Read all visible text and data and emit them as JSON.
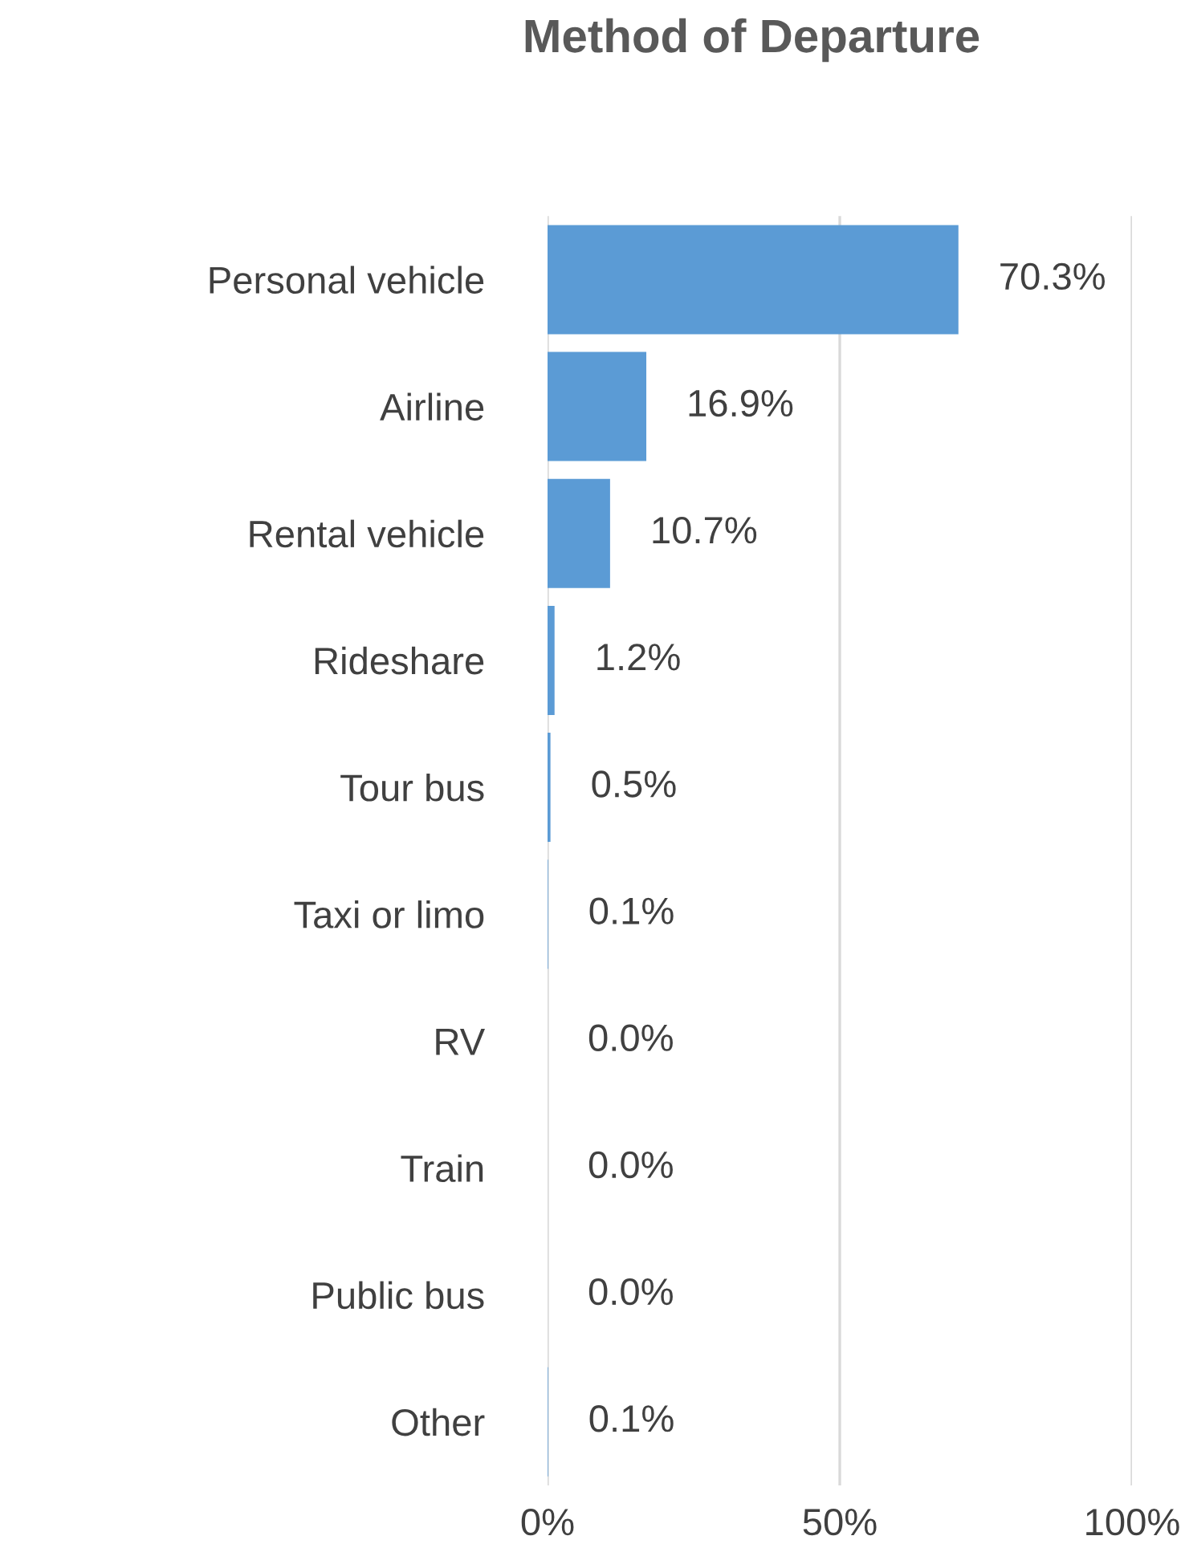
{
  "chart_data": {
    "type": "bar",
    "orientation": "horizontal",
    "title": "Method of Departure",
    "categories": [
      "Personal vehicle",
      "Airline",
      "Rental vehicle",
      "Rideshare",
      "Tour bus",
      "Taxi or limo",
      "RV",
      "Train",
      "Public bus",
      "Other"
    ],
    "values": [
      70.3,
      16.9,
      10.7,
      1.2,
      0.5,
      0.1,
      0.0,
      0.0,
      0.0,
      0.1
    ],
    "value_labels": [
      "70.3%",
      "16.9%",
      "10.7%",
      "1.2%",
      "0.5%",
      "0.1%",
      "0.0%",
      "0.0%",
      "0.0%",
      "0.1%"
    ],
    "color": "#5b9bd5",
    "xlim": [
      0,
      100
    ],
    "xticks": [
      {
        "value": 0,
        "label": "0%"
      },
      {
        "value": 50,
        "label": "50%"
      },
      {
        "value": 100,
        "label": "100%"
      }
    ],
    "grid": "x",
    "legend": false
  }
}
